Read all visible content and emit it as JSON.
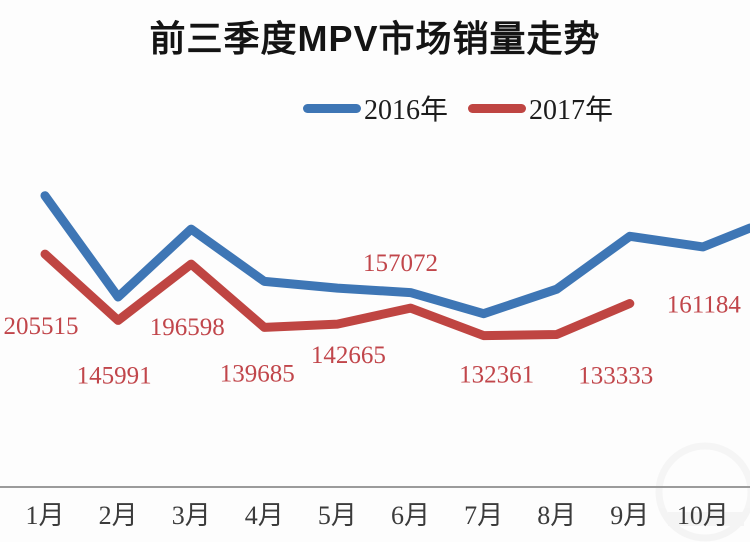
{
  "title": "前三季度MPV市场销量走势",
  "legend": [
    {
      "label": "2016年",
      "color": "#3e76b5"
    },
    {
      "label": "2017年",
      "color": "#bf4542"
    }
  ],
  "axis": {
    "line_color": "#9b9b9b",
    "tick_label_color": "#3b3b3b"
  },
  "chart_data": {
    "type": "line",
    "title": "前三季度MPV市场销量走势",
    "xlabel": "",
    "ylabel": "",
    "categories": [
      "1月",
      "2月",
      "3月",
      "4月",
      "5月",
      "6月",
      "7月",
      "8月",
      "9月",
      "10月"
    ],
    "series": [
      {
        "name": "2016年",
        "color": "#3e76b5",
        "estimated": true,
        "values": [
          258000,
          167000,
          228000,
          181000,
          175000,
          171000,
          152000,
          174000,
          221500,
          212000
        ],
        "edge_extension_value": 229000
      },
      {
        "name": "2017年",
        "color": "#bf4542",
        "estimated": false,
        "values": [
          205515,
          145991,
          196598,
          139685,
          142665,
          157072,
          132361,
          133333,
          161184
        ],
        "data_labels": [
          "205515",
          "145991",
          "196598",
          "139685",
          "142665",
          "157072",
          "132361",
          "133333",
          "161184"
        ]
      }
    ],
    "ylim": [
      0,
      280000
    ],
    "grid": false,
    "legend_position": "top-center",
    "label_color": "#c1464b"
  }
}
